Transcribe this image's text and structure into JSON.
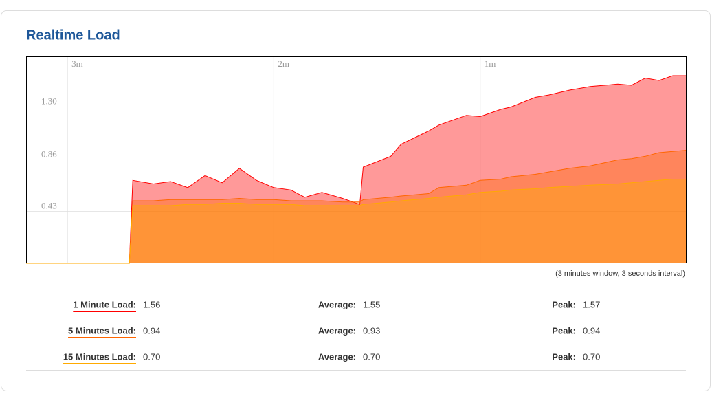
{
  "chart_data": {
    "type": "area",
    "title": "Realtime Load",
    "x": [
      192,
      162,
      161,
      155,
      150,
      145,
      140,
      135,
      130,
      125,
      120,
      115,
      111,
      106,
      100,
      95,
      94,
      86,
      83,
      75,
      72,
      64,
      60,
      54,
      51,
      44,
      40,
      34,
      28,
      20,
      16,
      12,
      8,
      4,
      0
    ],
    "xlim": [
      192,
      0
    ],
    "xticks": [
      {
        "value": 180,
        "label": "3m"
      },
      {
        "value": 120,
        "label": "2m"
      },
      {
        "value": 60,
        "label": "1m"
      }
    ],
    "ylim": [
      0,
      1.72
    ],
    "yticks": [
      {
        "value": 1.3,
        "label": "1.30"
      },
      0.86,
      0.43
    ],
    "grid": true,
    "series": [
      {
        "name": "1 Minute Load:",
        "color": "#ff0000",
        "values": [
          0,
          0,
          0.69,
          0.66,
          0.68,
          0.63,
          0.73,
          0.67,
          0.79,
          0.69,
          0.63,
          0.61,
          0.55,
          0.59,
          0.54,
          0.49,
          0.8,
          0.89,
          0.99,
          1.1,
          1.15,
          1.23,
          1.22,
          1.28,
          1.3,
          1.38,
          1.4,
          1.44,
          1.47,
          1.49,
          1.48,
          1.54,
          1.52,
          1.56,
          1.56
        ]
      },
      {
        "name": "5 Minutes Load:",
        "color": "#ff6600",
        "values": [
          0,
          0,
          0.52,
          0.52,
          0.53,
          0.53,
          0.53,
          0.53,
          0.54,
          0.53,
          0.53,
          0.52,
          0.52,
          0.52,
          0.51,
          0.51,
          0.53,
          0.55,
          0.56,
          0.58,
          0.63,
          0.65,
          0.69,
          0.7,
          0.72,
          0.74,
          0.76,
          0.79,
          0.81,
          0.86,
          0.87,
          0.89,
          0.92,
          0.93,
          0.94
        ]
      },
      {
        "name": "15 Minutes Load:",
        "color": "#ffaa00",
        "values": [
          0,
          0,
          0.48,
          0.48,
          0.48,
          0.49,
          0.49,
          0.5,
          0.5,
          0.49,
          0.49,
          0.49,
          0.48,
          0.48,
          0.48,
          0.48,
          0.49,
          0.51,
          0.52,
          0.54,
          0.55,
          0.57,
          0.59,
          0.6,
          0.61,
          0.62,
          0.63,
          0.64,
          0.65,
          0.66,
          0.67,
          0.68,
          0.69,
          0.7,
          0.7
        ]
      }
    ],
    "note": "(3 minutes window, 3 seconds interval)"
  },
  "stats": {
    "rows": [
      {
        "current": "1.56",
        "average_label": "Average:",
        "average": "1.55",
        "peak_label": "Peak:",
        "peak": "1.57"
      },
      {
        "current": "0.94",
        "average_label": "Average:",
        "average": "0.93",
        "peak_label": "Peak:",
        "peak": "0.94"
      },
      {
        "current": "0.70",
        "average_label": "Average:",
        "average": "0.70",
        "peak_label": "Peak:",
        "peak": "0.70"
      }
    ]
  }
}
